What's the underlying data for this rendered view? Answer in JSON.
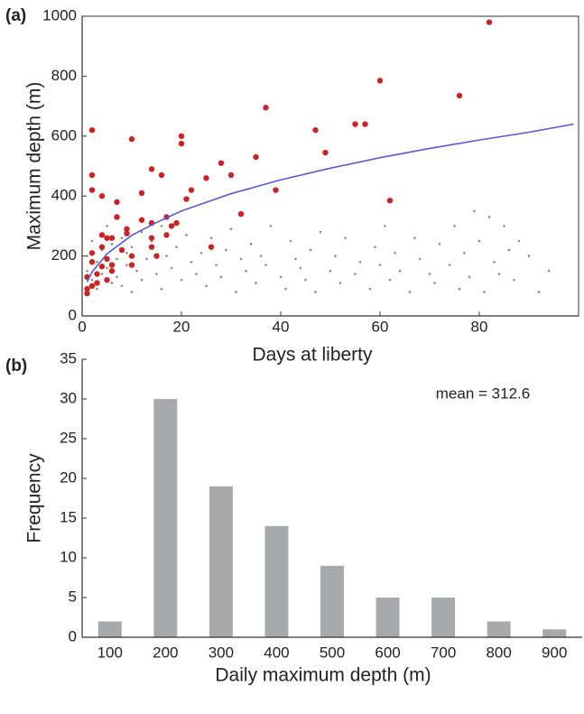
{
  "chart_data": [
    {
      "type": "scatter",
      "panel_label": "(a)",
      "x_label": "Days at liberty",
      "y_label": "Maximum depth (m)",
      "xlim": [
        0,
        100
      ],
      "ylim": [
        0,
        1000
      ],
      "xticks": [
        0,
        20,
        40,
        60,
        80
      ],
      "yticks": [
        0,
        200,
        400,
        600,
        800,
        1000
      ],
      "series": [
        {
          "color": "#8a8a8a",
          "style": "points",
          "size": 1.3,
          "x": [
            1,
            1,
            2,
            2,
            3,
            3,
            4,
            4,
            5,
            5,
            6,
            6,
            7,
            7,
            8,
            8,
            9,
            9,
            10,
            10,
            11,
            12,
            12,
            13,
            14,
            15,
            16,
            16,
            17,
            18,
            19,
            20,
            21,
            22,
            23,
            24,
            25,
            26,
            27,
            28,
            29,
            30,
            31,
            32,
            33,
            34,
            35,
            36,
            37,
            38,
            40,
            41,
            42,
            43,
            44,
            45,
            46,
            47,
            48,
            50,
            51,
            52,
            53,
            55,
            56,
            58,
            59,
            60,
            61,
            62,
            63,
            64,
            66,
            67,
            68,
            70,
            71,
            72,
            74,
            75,
            76,
            77,
            78,
            79,
            80,
            81,
            82,
            83,
            84,
            85,
            86,
            87,
            88,
            90,
            92,
            94
          ],
          "values": [
            150,
            200,
            120,
            250,
            180,
            90,
            220,
            140,
            160,
            300,
            110,
            240,
            190,
            130,
            260,
            100,
            170,
            210,
            80,
            230,
            150,
            280,
            120,
            190,
            250,
            140,
            300,
            90,
            200,
            160,
            230,
            120,
            270,
            180,
            140,
            210,
            100,
            260,
            170,
            130,
            220,
            290,
            80,
            190,
            150,
            240,
            110,
            200,
            170,
            300,
            130,
            90,
            250,
            190,
            160,
            120,
            220,
            80,
            280,
            150,
            200,
            110,
            260,
            140,
            180,
            90,
            230,
            170,
            300,
            120,
            210,
            150,
            80,
            260,
            190,
            140,
            110,
            240,
            170,
            300,
            90,
            210,
            130,
            350,
            250,
            80,
            330,
            180,
            140,
            300,
            220,
            120,
            250,
            200,
            80,
            150
          ]
        },
        {
          "color": "#cc2222",
          "style": "points",
          "size": 3.2,
          "x": [
            1,
            1,
            1,
            2,
            2,
            2,
            2,
            2,
            2,
            3,
            3,
            4,
            4,
            4,
            4,
            5,
            5,
            5,
            6,
            6,
            6,
            7,
            7,
            8,
            9,
            9,
            10,
            10,
            10,
            12,
            12,
            14,
            14,
            14,
            14,
            15,
            16,
            17,
            17,
            18,
            19,
            20,
            20,
            21,
            22,
            25,
            26,
            28,
            30,
            32,
            35,
            37,
            39,
            47,
            49,
            55,
            57,
            60,
            62,
            76,
            82
          ],
          "values": [
            75,
            90,
            130,
            620,
            470,
            420,
            210,
            180,
            100,
            140,
            110,
            400,
            270,
            230,
            165,
            260,
            190,
            120,
            260,
            170,
            150,
            380,
            330,
            220,
            290,
            275,
            590,
            200,
            170,
            410,
            320,
            490,
            310,
            260,
            230,
            200,
            470,
            330,
            270,
            300,
            310,
            600,
            575,
            390,
            420,
            460,
            230,
            510,
            470,
            340,
            530,
            695,
            420,
            620,
            545,
            640,
            640,
            785,
            385,
            735,
            980
          ]
        },
        {
          "color": "#5a5ad2",
          "style": "line",
          "x": [
            1,
            2,
            5,
            10,
            15,
            20,
            30,
            40,
            50,
            60,
            70,
            80,
            90,
            99
          ],
          "values": [
            113,
            147,
            207,
            269,
            312,
            350,
            408,
            454,
            493,
            528,
            559,
            587,
            613,
            640
          ]
        }
      ]
    },
    {
      "type": "bar",
      "panel_label": "(b)",
      "x_label": "Daily maximum depth (m)",
      "y_label": "Frequency",
      "annotation": "mean = 312.6",
      "color": "#a7a9ac",
      "categories": [
        "100",
        "200",
        "300",
        "400",
        "500",
        "600",
        "700",
        "800",
        "900"
      ],
      "values": [
        2,
        30,
        19,
        14,
        9,
        5,
        5,
        2,
        1
      ],
      "ylim": [
        0,
        35
      ],
      "yticks": [
        0,
        5,
        10,
        15,
        20,
        25,
        30,
        35
      ]
    }
  ]
}
